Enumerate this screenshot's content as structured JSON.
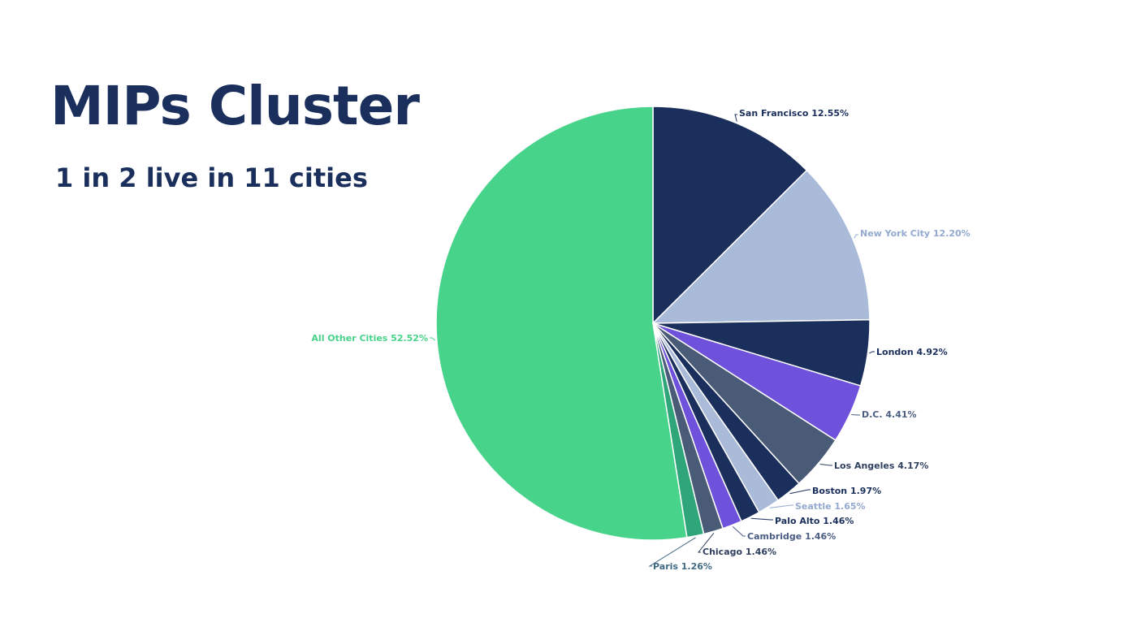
{
  "title": "MIPs Cluster",
  "subtitle": "1 in 2 live in 11 cities",
  "chart_data": {
    "type": "pie",
    "start": "12 o'clock",
    "direction": "clockwise",
    "slices": [
      {
        "label": "San Francisco",
        "value": 12.55,
        "display": "San Francisco 12.55%",
        "color": "#1b2f5c",
        "label_color": "#1b2f5c"
      },
      {
        "label": "New York City",
        "value": 12.2,
        "display": "New York City 12.20%",
        "color": "#a9bbd9",
        "label_color": "#93a9cf"
      },
      {
        "label": "London",
        "value": 4.92,
        "display": "London 4.92%",
        "color": "#1b2f5c",
        "label_color": "#1b2f5c"
      },
      {
        "label": "D.C.",
        "value": 4.41,
        "display": "D.C. 4.41%",
        "color": "#6f52db",
        "label_color": "#4b5d83"
      },
      {
        "label": "Los Angeles",
        "value": 4.17,
        "display": "Los Angeles 4.17%",
        "color": "#4a5b78",
        "label_color": "#2f3f5f"
      },
      {
        "label": "Boston",
        "value": 1.97,
        "display": "Boston 1.97%",
        "color": "#1b2f5c",
        "label_color": "#1b2f5c"
      },
      {
        "label": "Seattle",
        "value": 1.65,
        "display": "Seattle 1.65%",
        "color": "#a9bbd9",
        "label_color": "#93a9cf"
      },
      {
        "label": "Palo Alto",
        "value": 1.46,
        "display": "Palo Alto 1.46%",
        "color": "#1b2f5c",
        "label_color": "#1b2f5c"
      },
      {
        "label": "Cambridge",
        "value": 1.46,
        "display": "Cambridge 1.46%",
        "color": "#6f52db",
        "label_color": "#4b5d83"
      },
      {
        "label": "Chicago",
        "value": 1.46,
        "display": "Chicago 1.46%",
        "color": "#4a5b78",
        "label_color": "#2f3f5f"
      },
      {
        "label": "Paris",
        "value": 1.26,
        "display": "Paris 1.26%",
        "color": "#2fa67a",
        "label_color": "#3f6a84"
      },
      {
        "label": "All Other Cities",
        "value": 52.52,
        "display": "All Other Cities 52.52%",
        "color": "#48d38a",
        "label_color": "#48d38a"
      }
    ]
  }
}
